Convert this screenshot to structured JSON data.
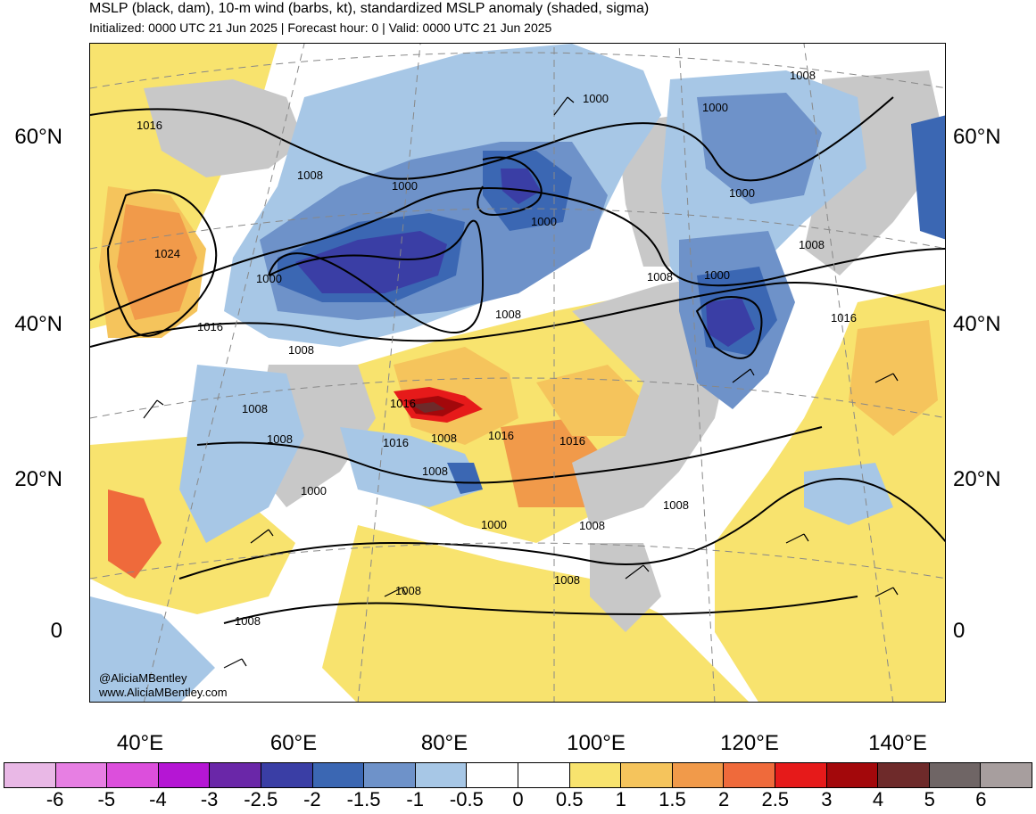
{
  "header": {
    "title": "MSLP (black, dam), 10-m wind (barbs, kt), standardized MSLP anomaly (shaded, sigma)",
    "subtitle": "Initialized: 0000 UTC 21 Jun 2025 | Forecast hour: 0 | Valid: 0000 UTC 21 Jun 2025"
  },
  "axes": {
    "latitude_labels": [
      "60°N",
      "40°N",
      "20°N",
      "0"
    ],
    "longitude_labels": [
      "40°E",
      "60°E",
      "80°E",
      "100°E",
      "120°E",
      "140°E"
    ]
  },
  "contour_labels": [
    "1016",
    "1024",
    "1016",
    "1008",
    "1000",
    "1000",
    "1000",
    "1000",
    "1000",
    "1008",
    "1008",
    "1008",
    "1000",
    "1008",
    "1016",
    "1008",
    "1008",
    "1016",
    "1008",
    "1016",
    "1016",
    "1008",
    "1000",
    "1000",
    "1008",
    "1008",
    "1008",
    "1008",
    "1008",
    "1008",
    "1000",
    "1016"
  ],
  "credits": {
    "handle": "@AliciaMBentley",
    "website": "www.AliciaMBentley.com"
  },
  "colorbar": {
    "colors": [
      "#e9b8e6",
      "#e77fe3",
      "#dc4fdc",
      "#b516d4",
      "#6a27a8",
      "#3a3ea5",
      "#3b67b3",
      "#6e92c9",
      "#a7c7e6",
      "#ffffff",
      "#ffffff",
      "#f8e36e",
      "#f5c45c",
      "#f19a4a",
      "#ef6a3b",
      "#e61a1a",
      "#a3080b",
      "#6e2a2a",
      "#6f6565",
      "#a79e9e"
    ],
    "tick_labels": [
      "-6",
      "-5",
      "-4",
      "-3",
      "-2.5",
      "-2",
      "-1.5",
      "-1",
      "-0.5",
      "0",
      "0.5",
      "1",
      "1.5",
      "2",
      "2.5",
      "3",
      "4",
      "5",
      "6"
    ]
  },
  "map_colors": {
    "positive_light": "#f8e36e",
    "positive_mid": "#f5c45c",
    "positive_strong": "#f19a4a",
    "positive_very_strong": "#ef6a3b",
    "positive_extreme": "#a3080b",
    "negative_light": "#a7c7e6",
    "negative_mid": "#6e92c9",
    "negative_strong": "#3b67b3",
    "negative_very_strong": "#3a3ea5",
    "land_gray": "#c8c8c8"
  }
}
